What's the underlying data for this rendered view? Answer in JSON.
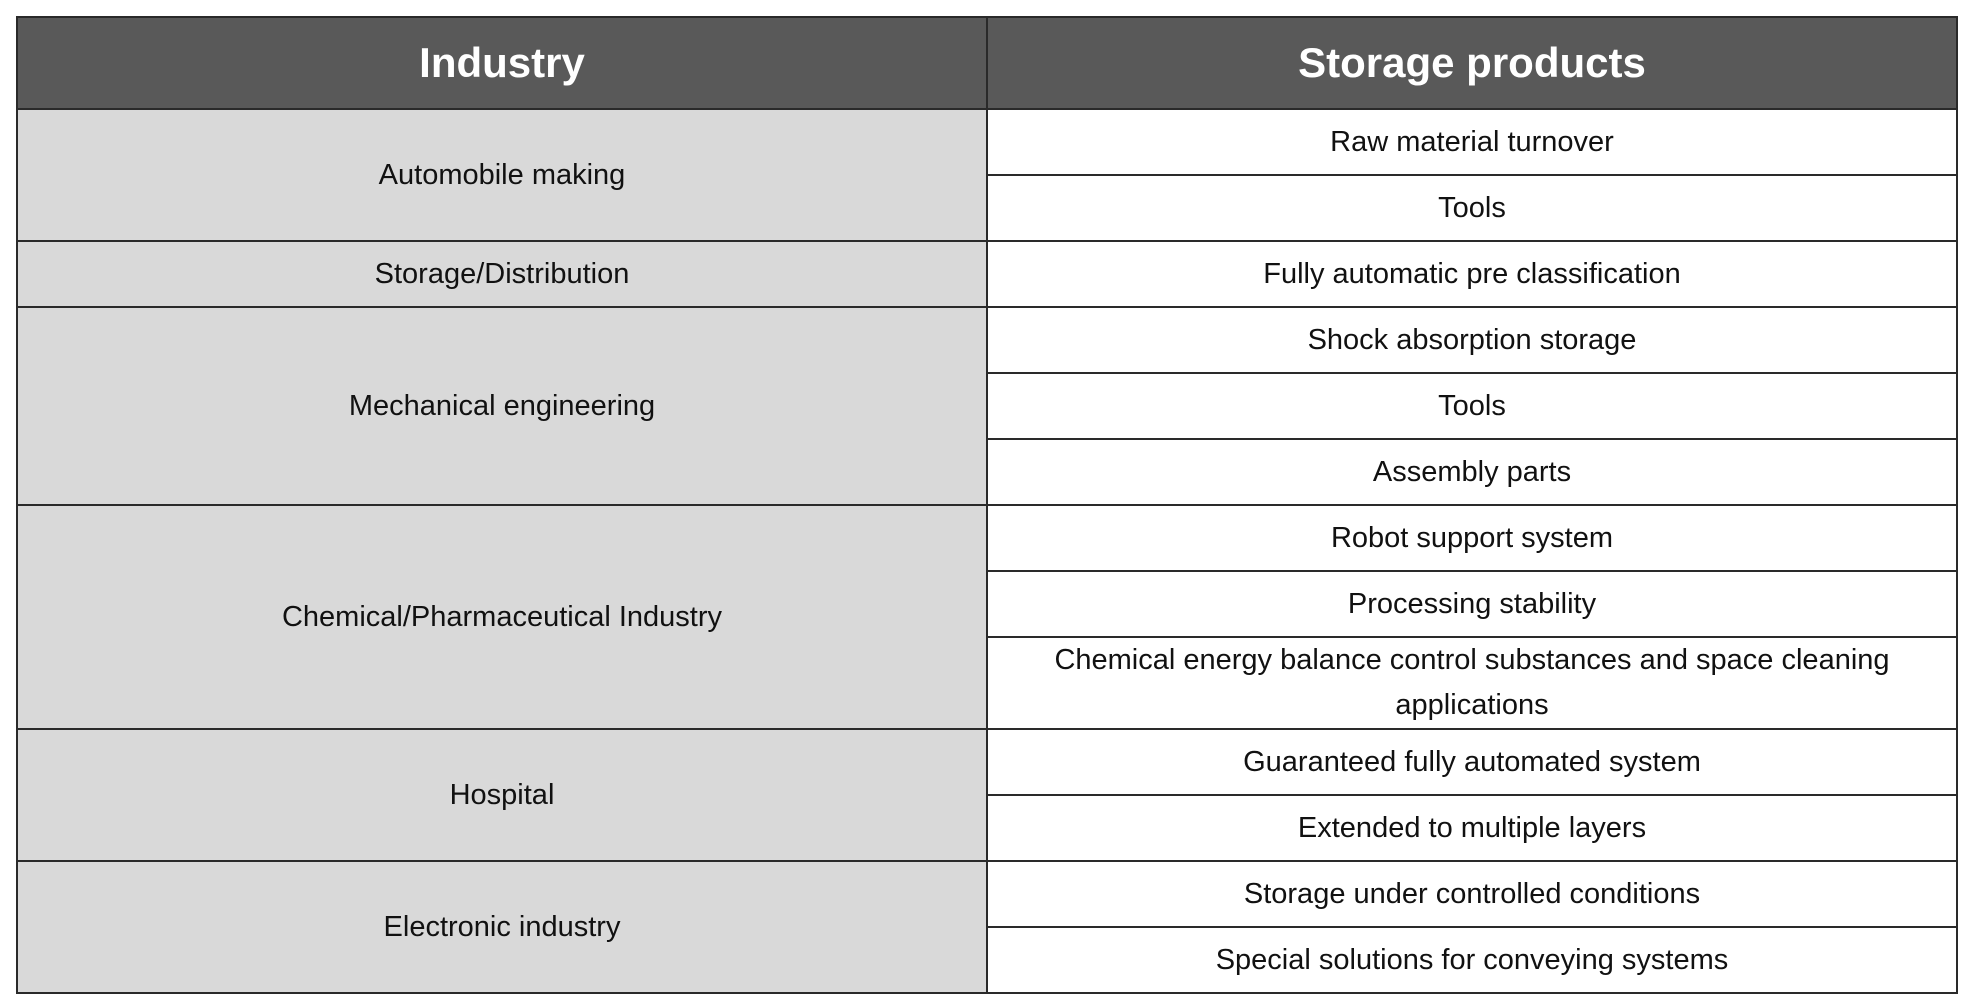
{
  "table": {
    "headers": {
      "industry": "Industry",
      "products": "Storage products"
    },
    "groups": [
      {
        "industry": "Automobile making",
        "products": [
          "Raw material turnover",
          "Tools"
        ]
      },
      {
        "industry": "Storage/Distribution",
        "products": [
          "Fully automatic pre classification"
        ]
      },
      {
        "industry": "Mechanical engineering",
        "products": [
          "Shock absorption storage",
          "Tools",
          "Assembly parts"
        ]
      },
      {
        "industry": "Chemical/Pharmaceutical Industry",
        "products": [
          "Robot support system",
          "Processing stability",
          "Chemical energy balance control substances and space cleaning applications"
        ]
      },
      {
        "industry": "Hospital",
        "products": [
          "Guaranteed fully automated system",
          "Extended to multiple layers"
        ]
      },
      {
        "industry": "Electronic industry",
        "products": [
          "Storage under controlled conditions",
          "Special solutions for conveying systems"
        ]
      }
    ]
  },
  "colors": {
    "header_bg": "#595959",
    "header_text": "#ffffff",
    "industry_bg": "#d9d9d9",
    "product_bg": "#ffffff",
    "border": "#2a2a2a"
  }
}
